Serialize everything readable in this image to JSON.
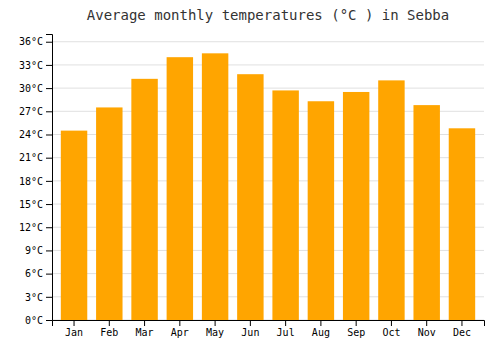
{
  "chart_data": {
    "type": "bar",
    "title": "Average monthly temperatures (°C ) in Sebba",
    "categories": [
      "Jan",
      "Feb",
      "Mar",
      "Apr",
      "May",
      "Jun",
      "Jul",
      "Aug",
      "Sep",
      "Oct",
      "Nov",
      "Dec"
    ],
    "values": [
      24.5,
      27.5,
      31.2,
      34.0,
      34.5,
      31.8,
      29.7,
      28.3,
      29.5,
      31.0,
      27.8,
      24.8
    ],
    "color": "#FFA500",
    "ylim": [
      0,
      37
    ],
    "yticks": [
      {
        "value": 0,
        "label": "0°C"
      },
      {
        "value": 3,
        "label": "3°C"
      },
      {
        "value": 6,
        "label": "6°C"
      },
      {
        "value": 9,
        "label": "9°C"
      },
      {
        "value": 12,
        "label": "12°C"
      },
      {
        "value": 15,
        "label": "15°C"
      },
      {
        "value": 18,
        "label": "18°C"
      },
      {
        "value": 21,
        "label": "21°C"
      },
      {
        "value": 24,
        "label": "24°C"
      },
      {
        "value": 27,
        "label": "27°C"
      },
      {
        "value": 30,
        "label": "30°C"
      },
      {
        "value": 33,
        "label": "33°C"
      },
      {
        "value": 36,
        "label": "36°C"
      }
    ],
    "grid": true
  }
}
